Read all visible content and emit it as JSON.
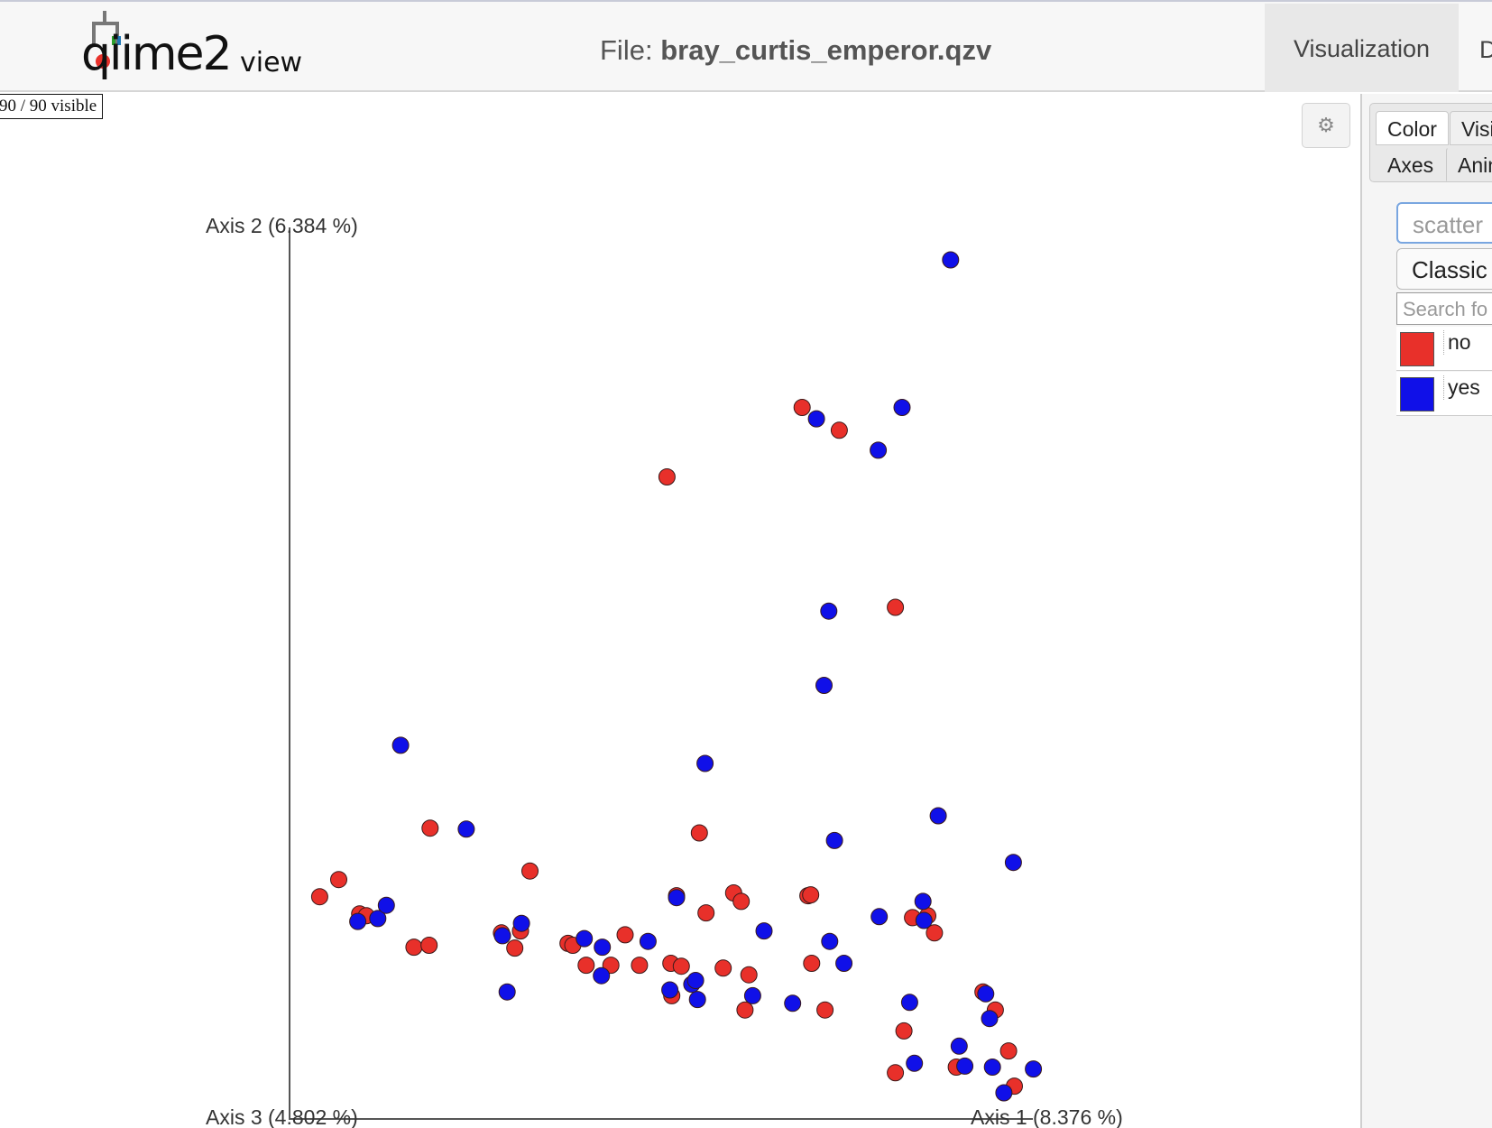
{
  "header": {
    "logo_text": "qiime2",
    "logo_sub": "view",
    "file_label": "File:",
    "file_name": "bray_curtis_emperor.qzv",
    "tab_visualization": "Visualization",
    "tab_next": "D"
  },
  "visible_count": "90 / 90 visible",
  "settings_icon": "gear-icon",
  "panel": {
    "tabs": [
      {
        "label": "Color",
        "active": true
      },
      {
        "label": "Visi",
        "active": false
      },
      {
        "label": "Axes",
        "active": false
      },
      {
        "label": "Anin",
        "active": false
      }
    ],
    "category_select": "scatter",
    "colormap_select": "Classic",
    "search_placeholder": "Search fo",
    "legend": [
      {
        "label": "no",
        "color": "#e8302a"
      },
      {
        "label": "yes",
        "color": "#1010e8"
      }
    ]
  },
  "chart_data": {
    "type": "scatter",
    "axis_labels": {
      "axis2": "Axis 2 (6.384 %)",
      "axis3": "Axis 3 (4.802 %)",
      "axis1": "Axis 1 (8.376 %)"
    },
    "series": [
      {
        "name": "no",
        "color": "#e8302a",
        "points": [
          [
            336,
            942
          ],
          [
            356,
            924
          ],
          [
            378,
            960
          ],
          [
            385,
            962
          ],
          [
            435,
            995
          ],
          [
            451,
            993
          ],
          [
            452,
            870
          ],
          [
            527,
            980
          ],
          [
            541,
            996
          ],
          [
            547,
            978
          ],
          [
            557,
            915
          ],
          [
            597,
            991
          ],
          [
            602,
            993
          ],
          [
            616,
            1014
          ],
          [
            642,
            1014
          ],
          [
            657,
            982
          ],
          [
            672,
            1014
          ],
          [
            701,
            501
          ],
          [
            705,
            1012
          ],
          [
            706,
            1046
          ],
          [
            711,
            941
          ],
          [
            716,
            1015
          ],
          [
            735,
            875
          ],
          [
            742,
            959
          ],
          [
            760,
            1017
          ],
          [
            771,
            938
          ],
          [
            779,
            947
          ],
          [
            787,
            1024
          ],
          [
            783,
            1061
          ],
          [
            843,
            428
          ],
          [
            849,
            941
          ],
          [
            852,
            940
          ],
          [
            853,
            1012
          ],
          [
            867,
            1061
          ],
          [
            882,
            452
          ],
          [
            941,
            638
          ],
          [
            941,
            1127
          ],
          [
            950,
            1083
          ],
          [
            959,
            964
          ],
          [
            975,
            962
          ],
          [
            982,
            980
          ],
          [
            1005,
            1121
          ],
          [
            1033,
            1042
          ],
          [
            1046,
            1061
          ],
          [
            1060,
            1104
          ],
          [
            1066,
            1141
          ]
        ]
      },
      {
        "name": "yes",
        "color": "#1010e8",
        "points": [
          [
            376,
            968
          ],
          [
            397,
            965
          ],
          [
            406,
            951
          ],
          [
            421,
            783
          ],
          [
            490,
            871
          ],
          [
            533,
            1042
          ],
          [
            548,
            970
          ],
          [
            528,
            983
          ],
          [
            614,
            986
          ],
          [
            633,
            995
          ],
          [
            632,
            1025
          ],
          [
            681,
            989
          ],
          [
            704,
            1040
          ],
          [
            711,
            943
          ],
          [
            727,
            1034
          ],
          [
            731,
            1030
          ],
          [
            733,
            1050
          ],
          [
            741,
            802
          ],
          [
            791,
            1046
          ],
          [
            803,
            978
          ],
          [
            833,
            1054
          ],
          [
            858,
            440
          ],
          [
            866,
            720
          ],
          [
            871,
            642
          ],
          [
            872,
            989
          ],
          [
            877,
            883
          ],
          [
            887,
            1012
          ],
          [
            923,
            473
          ],
          [
            924,
            963
          ],
          [
            948,
            428
          ],
          [
            956,
            1053
          ],
          [
            961,
            1117
          ],
          [
            970,
            947
          ],
          [
            971,
            967
          ],
          [
            986,
            857
          ],
          [
            999,
            273
          ],
          [
            1008,
            1099
          ],
          [
            1014,
            1120
          ],
          [
            1036,
            1044
          ],
          [
            1040,
            1070
          ],
          [
            1043,
            1121
          ],
          [
            1055,
            1148
          ],
          [
            1065,
            906
          ],
          [
            1086,
            1123
          ]
        ]
      }
    ]
  }
}
